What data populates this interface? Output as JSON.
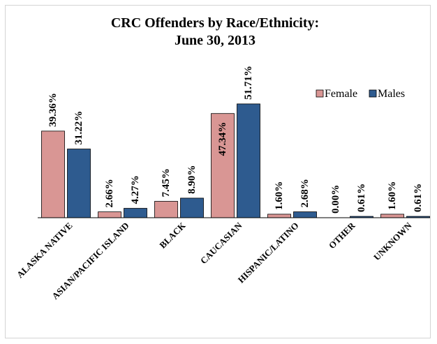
{
  "chart_data": {
    "type": "bar",
    "title": [
      "CRC Offenders by Race/Ethnicity:",
      "June 30, 2013"
    ],
    "categories": [
      "ALASKA NATIVE",
      "ASIAN/PACIFIC ISLAND",
      "BLACK",
      "CAUCASIAN",
      "HISPANIC/LATINO",
      "OTHER",
      "UNKNOWN"
    ],
    "series": [
      {
        "name": "Female",
        "color": "#d99694",
        "values": [
          39.36,
          2.66,
          7.45,
          47.34,
          1.6,
          0.0,
          1.6
        ],
        "labels": [
          "39.36%",
          "2.66%",
          "7.45%",
          "47.34%",
          "1.60%",
          "0.00%",
          "1.60%"
        ]
      },
      {
        "name": "Males",
        "color": "#2e5b8f",
        "values": [
          31.22,
          4.27,
          8.9,
          51.71,
          2.68,
          0.61,
          0.61
        ],
        "labels": [
          "31.22%",
          "4.27%",
          "8.90%",
          "51.71%",
          "2.68%",
          "0.61%",
          "0.61%"
        ]
      }
    ],
    "ylim": [
      0,
      52
    ],
    "grid": false,
    "legend_position": "top-right"
  }
}
